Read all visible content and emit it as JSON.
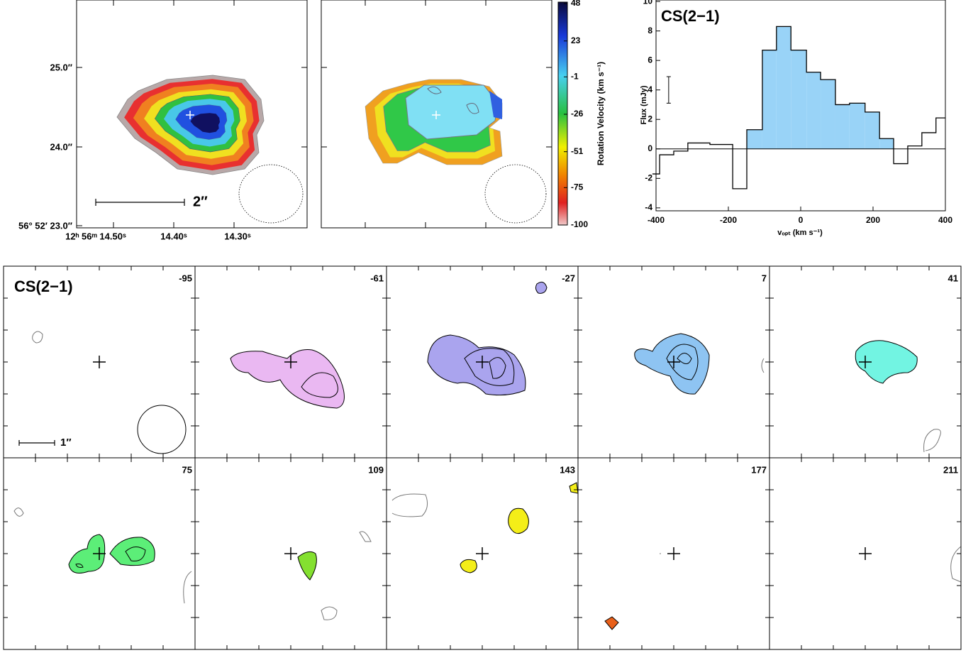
{
  "chart_data": [
    {
      "type": "map",
      "ytick_labels": [
        "25.0″",
        "24.0″",
        "56° 52′ 23.0″"
      ],
      "xtick_labels": [
        "12ʰ 56ᵐ 14.50ˢ",
        "14.40ˢ",
        "14.30ˢ"
      ],
      "scale_bar": "2″"
    },
    {
      "type": "map",
      "colorbar": {
        "label": "Rotation Velocity (km s⁻¹)",
        "lim": [
          -100,
          48
        ],
        "ticks": [
          48,
          23,
          -1,
          -26,
          -51,
          -75,
          -100
        ]
      }
    },
    {
      "type": "histogram",
      "title": "CS(2−1)",
      "x_label": "vₒₚₜ (km s⁻¹)",
      "y_label": "Flux (mJy)",
      "bins": [
        -410,
        -390,
        -351,
        -312,
        -251,
        -188,
        -149,
        -106,
        -67,
        -27,
        16,
        55,
        96,
        135,
        178,
        218,
        257,
        296,
        335,
        374,
        400
      ],
      "values": [
        -1.7,
        -0.4,
        -0.15,
        0.4,
        0.3,
        -2.7,
        1.3,
        6.7,
        8.3,
        6.7,
        5.2,
        4.7,
        3.0,
        3.1,
        2.5,
        0.7,
        -1.0,
        0.2,
        1.1,
        2.1
      ],
      "color": "#000000",
      "fill_color": "#99d3f7",
      "fill_range": [
        -149,
        257
      ],
      "xlim": [
        -400,
        400
      ],
      "ylim": [
        -4.2,
        10.1
      ],
      "xticks": [
        -400,
        -200,
        0,
        200,
        400
      ],
      "yticks": [
        -4,
        -2,
        0,
        2,
        4,
        6,
        8,
        10
      ],
      "error_bar": {
        "x": -365,
        "y": 4.0,
        "error": 0.9
      }
    },
    {
      "type": "channel_maps",
      "title": "CS(2−1)",
      "scale_bar": "1″",
      "channels": [
        {
          "velocity": -95
        },
        {
          "velocity": -61,
          "color": "#eab8f2"
        },
        {
          "velocity": -27,
          "color": "#aaa4ee"
        },
        {
          "velocity": 7,
          "color": "#8ec4f2"
        },
        {
          "velocity": 41,
          "color": "#72f4e2"
        },
        {
          "velocity": 75,
          "color": "#5cee78"
        },
        {
          "velocity": 109,
          "color": "#84e030"
        },
        {
          "velocity": 143,
          "color": "#f4ee18"
        },
        {
          "velocity": 177,
          "color": "#e8601a"
        },
        {
          "velocity": 211
        }
      ]
    }
  ]
}
